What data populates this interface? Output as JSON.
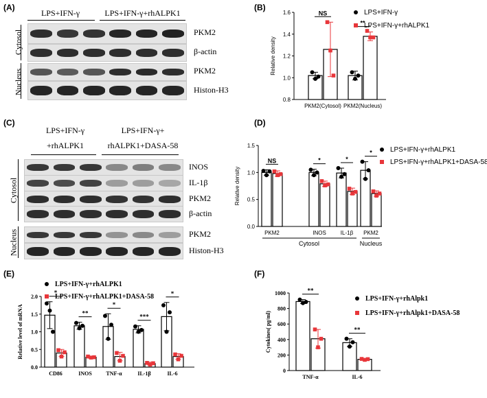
{
  "colors": {
    "black_series": "#000000",
    "red_series": "#e8363a",
    "band": "#1a1a1a"
  },
  "panels": {
    "A": {
      "label": "(A)",
      "groups": [
        "LPS+IFN-γ",
        "LPS+IFN-γ+rhALPK1"
      ],
      "rows": [
        "PKM2",
        "β-actin",
        "PKM2",
        "Histon-H3"
      ],
      "sides": [
        "Cytosol",
        "Nucleus"
      ]
    },
    "C": {
      "label": "(C)",
      "group1": [
        "LPS+IFN-γ",
        "+rhALPK1"
      ],
      "group2": [
        "LPS+IFN-γ+",
        "rhALPK1+DASA-58"
      ],
      "rows": [
        "INOS",
        "IL-1β",
        "PKM2",
        "β-actin",
        "PKM2",
        "Histon-H3"
      ],
      "sides": [
        "Cytosol",
        "Nucleus"
      ]
    },
    "B": {
      "label": "(B)"
    },
    "D": {
      "label": "(D)"
    },
    "E": {
      "label": "(E)"
    },
    "F": {
      "label": "(F)"
    }
  },
  "chart_data": [
    {
      "id": "B",
      "type": "bar",
      "categories": [
        "PKM2(Cytosol)",
        "PKM2(Nucleus)"
      ],
      "series": [
        {
          "name": "LPS+IFN-γ",
          "values": [
            1.02,
            1.02
          ],
          "err": [
            0.03,
            0.04
          ],
          "points": [
            [
              1.05,
              0.99,
              1.01
            ],
            [
              1.05,
              0.99,
              1.02
            ]
          ]
        },
        {
          "name": "LPS+IFN-γ+rhALPK1",
          "values": [
            1.26,
            1.38
          ],
          "err": [
            0.25,
            0.04
          ],
          "points": [
            [
              1.51,
              1.25,
              1.02
            ],
            [
              1.43,
              1.37,
              1.37
            ]
          ]
        }
      ],
      "ylabel": "Relative density",
      "ylim": [
        0.8,
        1.6
      ],
      "yticks": [
        "0.8",
        "1.0",
        "1.2",
        "1.4",
        "1.6"
      ],
      "significance": [
        "NS",
        "**"
      ]
    },
    {
      "id": "D",
      "type": "bar",
      "categories": [
        "PKM2",
        "INOS",
        "IL-1β",
        "PKM2"
      ],
      "groups": [
        "Cytosol",
        "Nucleus"
      ],
      "series": [
        {
          "name": "LPS+IFN-γ+rhALPK1",
          "values": [
            1.0,
            1.0,
            0.99,
            1.04
          ],
          "err": [
            0.05,
            0.06,
            0.09,
            0.16
          ],
          "points": [
            [
              1.03,
              0.95,
              1.02
            ],
            [
              1.05,
              0.95,
              1.0
            ],
            [
              1.08,
              0.92,
              0.97
            ],
            [
              1.2,
              0.88,
              1.04
            ]
          ]
        },
        {
          "name": "LPS+IFN-γ+rhALPK1+DASA-58",
          "values": [
            0.98,
            0.79,
            0.65,
            0.61
          ],
          "err": [
            0.05,
            0.05,
            0.06,
            0.05
          ],
          "points": [
            [
              1.02,
              0.95,
              0.97
            ],
            [
              0.84,
              0.76,
              0.78
            ],
            [
              0.7,
              0.61,
              0.64
            ],
            [
              0.65,
              0.57,
              0.61
            ]
          ]
        }
      ],
      "ylabel": "Relative density",
      "ylim": [
        0.0,
        1.5
      ],
      "yticks": [
        "0.0",
        "0.5",
        "1.0",
        "1.5"
      ],
      "significance": [
        "NS",
        "*",
        "*",
        "*"
      ]
    },
    {
      "id": "E",
      "type": "bar",
      "categories": [
        "CD86",
        "INOS",
        "TNF-α",
        "IL-1β",
        "IL-6"
      ],
      "series": [
        {
          "name": "LPS+IFN-γ+rhALPK1",
          "values": [
            1.47,
            1.17,
            1.15,
            1.07,
            1.43
          ],
          "err": [
            0.38,
            0.1,
            0.36,
            0.1,
            0.4
          ],
          "points": [
            [
              1.8,
              1.6,
              1.0
            ],
            [
              1.25,
              1.1,
              1.17
            ],
            [
              1.45,
              0.8,
              1.2
            ],
            [
              1.15,
              1.0,
              1.05
            ],
            [
              1.75,
              1.0,
              1.55
            ]
          ]
        },
        {
          "name": "LPS+IFN-γ+rhALPK1+DASA-58",
          "values": [
            0.4,
            0.28,
            0.3,
            0.1,
            0.3
          ],
          "err": [
            0.1,
            0.03,
            0.12,
            0.04,
            0.08
          ],
          "points": [
            [
              0.48,
              0.3,
              0.42
            ],
            [
              0.3,
              0.27,
              0.28
            ],
            [
              0.4,
              0.18,
              0.32
            ],
            [
              0.12,
              0.07,
              0.11
            ],
            [
              0.36,
              0.22,
              0.32
            ]
          ]
        }
      ],
      "ylabel": "Relative level of mRNA",
      "ylim": [
        0.0,
        2.0
      ],
      "yticks": [
        "0.0",
        "0.5",
        "1.0",
        "1.5",
        "2.0"
      ],
      "significance": [
        "*",
        "**",
        "*",
        "***",
        "*"
      ]
    },
    {
      "id": "F",
      "type": "bar",
      "categories": [
        "TNF-α",
        "IL-6"
      ],
      "series": [
        {
          "name": "LPS+IFN-γ+rhAlpk1",
          "values": [
            890,
            360
          ],
          "err": [
            25,
            50
          ],
          "points": [
            [
              915,
              870,
              885
            ],
            [
              410,
              310,
              365
            ]
          ]
        },
        {
          "name": "LPS+IFN-γ+rhAlpk1+DASA-58",
          "values": [
            410,
            145
          ],
          "err": [
            120,
            10
          ],
          "points": [
            [
              530,
              300,
              410
            ],
            [
              150,
              138,
              147
            ]
          ]
        }
      ],
      "ylabel": "Cytokines( pg/ml)",
      "ylim": [
        0,
        1000
      ],
      "yticks": [
        "0",
        "200",
        "400",
        "600",
        "800",
        "1000"
      ],
      "significance": [
        "**",
        "**"
      ]
    }
  ]
}
